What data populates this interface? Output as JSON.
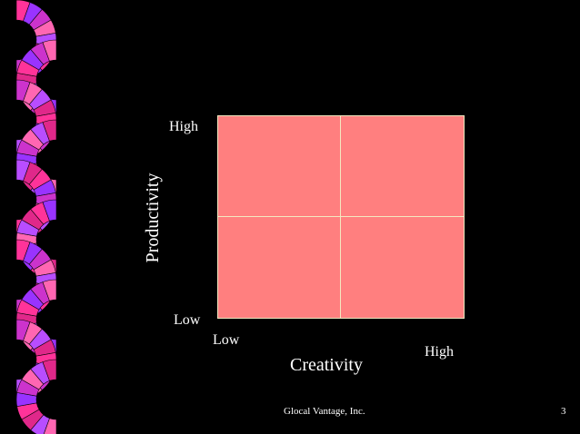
{
  "slide": {
    "background": "#000000"
  },
  "matrix": {
    "fill": "#ff7f7f",
    "divider": "#f4e8c0",
    "y_axis": {
      "title": "Productivity",
      "high": "High",
      "low": "Low"
    },
    "x_axis": {
      "title": "Creativity",
      "low": "Low",
      "high": "High"
    }
  },
  "decor": {
    "name": "fan-ribbon-border",
    "colors": [
      "#ff3399",
      "#9933ff",
      "#cc33cc",
      "#ff66b2",
      "#b84dff",
      "#e0288a"
    ]
  },
  "footer": {
    "company": "Glocal Vantage, Inc.",
    "page_number": "3"
  }
}
